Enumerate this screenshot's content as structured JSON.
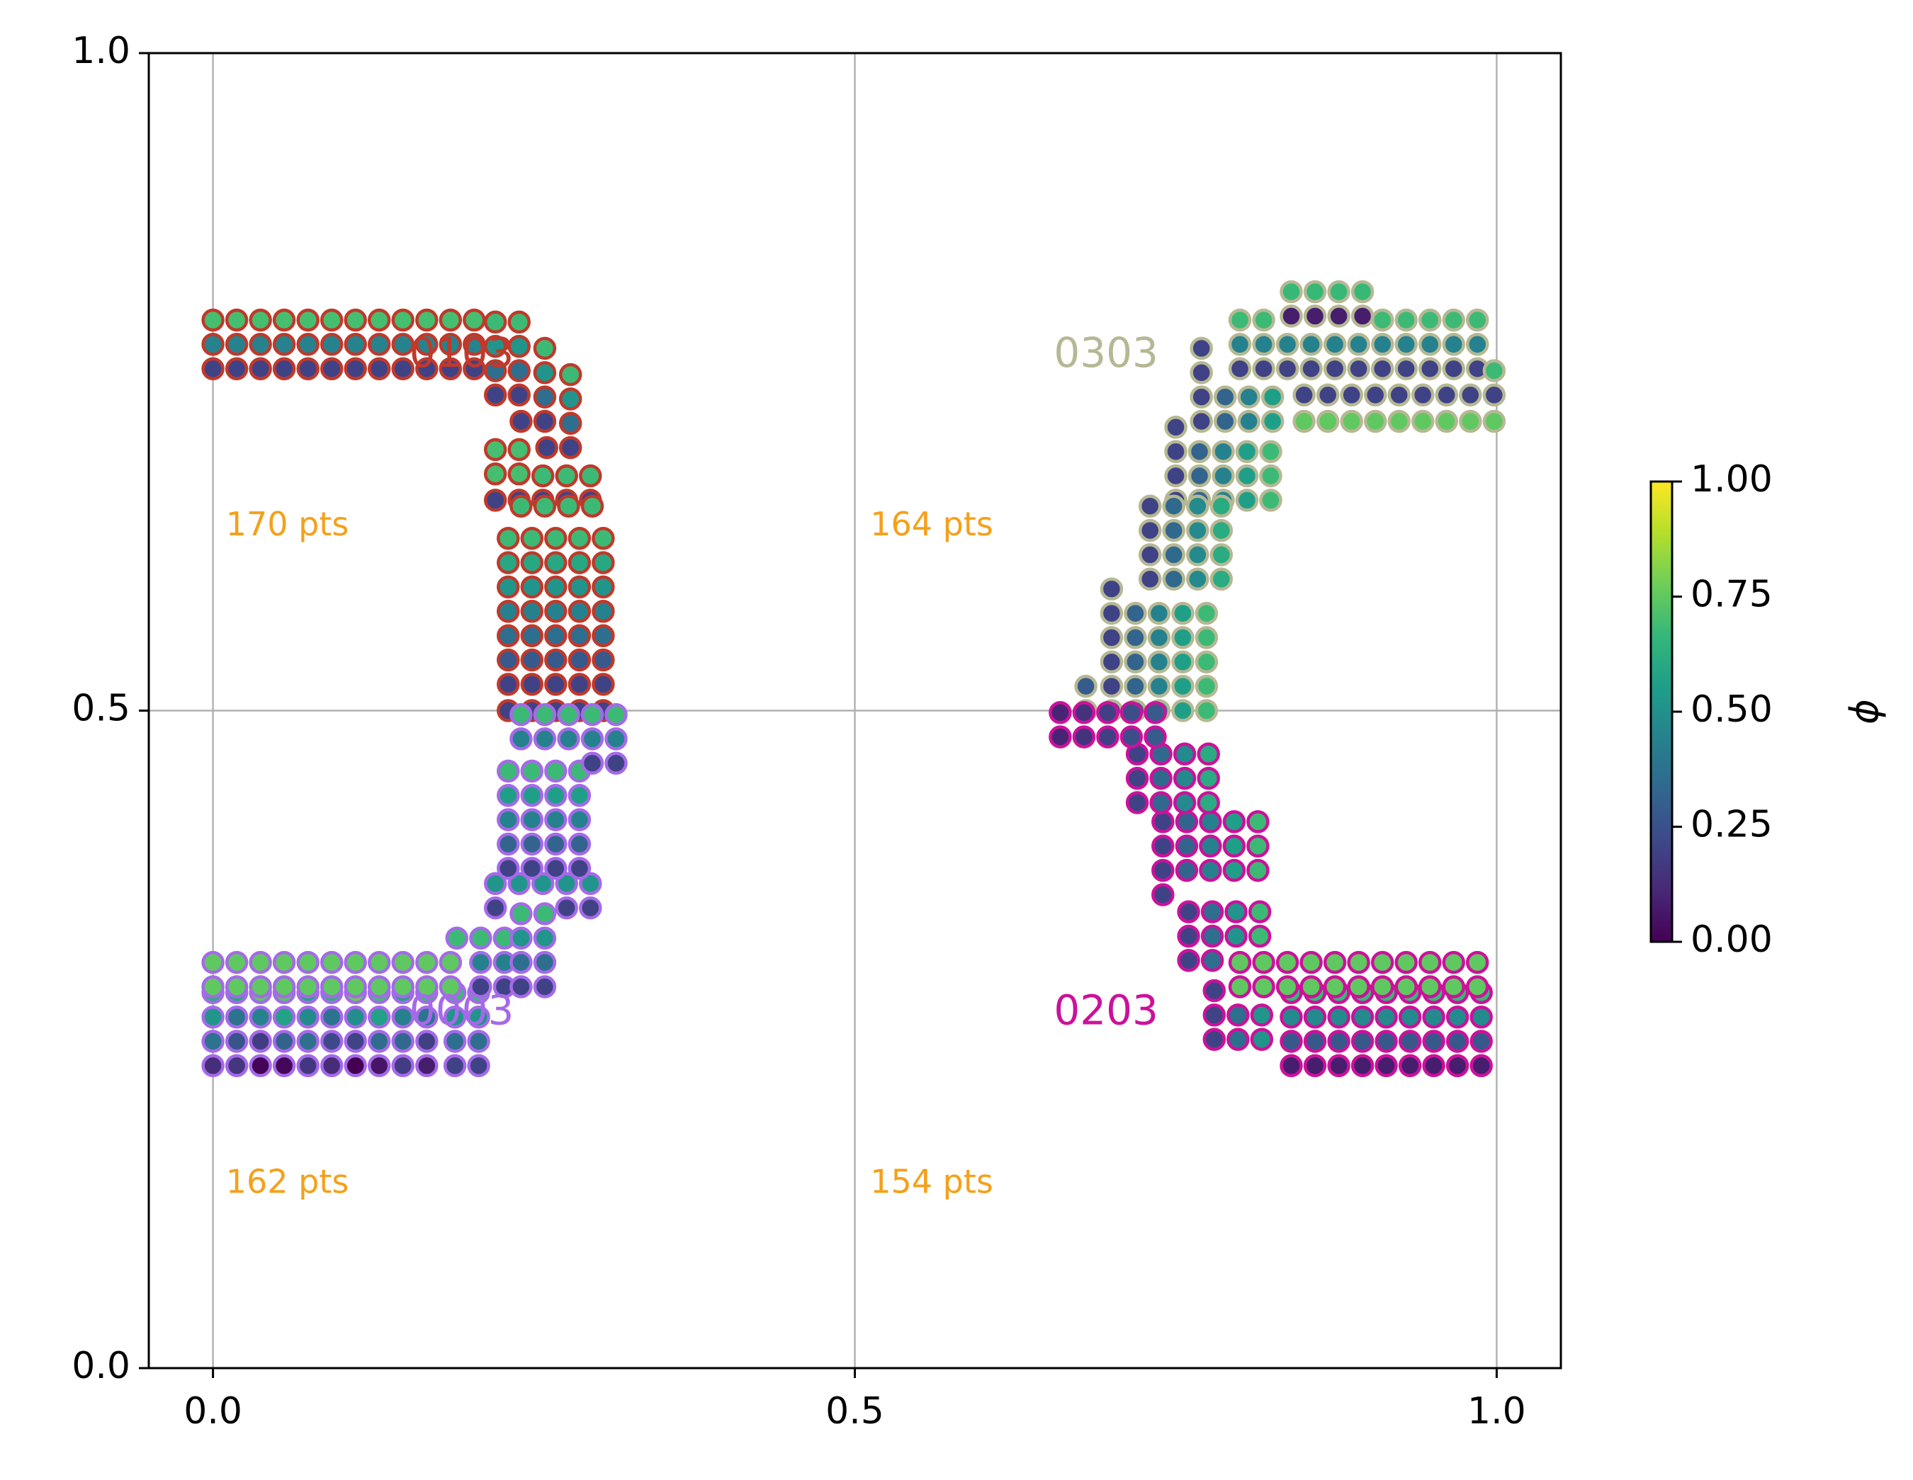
{
  "chart_data": {
    "type": "scatter",
    "xlim": [
      -0.05,
      1.05
    ],
    "ylim": [
      0.0,
      1.0
    ],
    "x_ticks": [
      "0.0",
      "0.5",
      "1.0"
    ],
    "y_ticks": [
      "0.0",
      "0.5",
      "1.0"
    ],
    "grid": true,
    "point_spacing": 0.0185,
    "colormap": "viridis",
    "colorbar": {
      "label": "ϕ",
      "ticks": [
        "0.00",
        "0.25",
        "0.50",
        "0.75",
        "1.00"
      ],
      "range": [
        0.0,
        1.0
      ],
      "stops": [
        "#440154",
        "#482878",
        "#3e4989",
        "#31688e",
        "#26828e",
        "#1f9e89",
        "#35b779",
        "#6ece58",
        "#b5de2b",
        "#fde725"
      ]
    },
    "series": [
      {
        "name": "0103",
        "edge_color": "#c0392b",
        "label_pos": [
          0.153,
          0.77
        ],
        "count_label": "170 pts",
        "count_pos": [
          0.01,
          0.64
        ],
        "bands": [
          [
            0.0,
            0.76,
            0.22,
            0.8,
            0.0,
            0.2,
            0.74,
            0.0,
            0.0
          ],
          [
            0.22,
            0.74,
            0.24,
            0.8,
            0.0,
            0.2,
            0.72,
            0.0,
            0.0
          ],
          [
            0.24,
            0.72,
            0.26,
            0.78,
            0.0,
            0.2,
            0.72,
            0.0,
            0.0
          ],
          [
            0.26,
            0.7,
            0.28,
            0.76,
            0.0,
            0.2,
            0.72,
            0.0,
            0.0
          ],
          [
            0.22,
            0.68,
            0.24,
            0.7,
            0.5,
            0.5,
            0.7,
            0.0,
            0.0
          ],
          [
            0.22,
            0.66,
            0.3,
            0.68,
            0.0,
            0.2,
            0.72,
            0.0,
            0.0
          ],
          [
            0.23,
            0.52,
            0.32,
            0.64,
            0.0,
            0.2,
            0.72,
            0.0,
            0.0
          ],
          [
            0.24,
            0.6,
            0.31,
            0.66,
            0.0,
            0.2,
            0.72,
            0.0,
            0.0
          ],
          [
            0.23,
            0.5,
            0.32,
            0.54,
            0.0,
            0.2,
            0.72,
            0.0,
            0.0
          ]
        ]
      },
      {
        "name": "0003",
        "edge_color": "#a56ae8",
        "label_pos": [
          0.153,
          0.27
        ],
        "count_label": "162 pts",
        "count_pos": [
          0.01,
          0.14
        ],
        "bands": [
          [
            0.0,
            0.23,
            0.17,
            0.29,
            0.0,
            0.08,
            0.72,
            0.1,
            0.0
          ],
          [
            0.17,
            0.23,
            0.22,
            0.29,
            0.0,
            0.2,
            0.72,
            0.0,
            0.0
          ],
          [
            0.0,
            0.29,
            0.19,
            0.31,
            0.5,
            0.5,
            0.75,
            0.0,
            0.0
          ],
          [
            0.19,
            0.29,
            0.24,
            0.33,
            0.0,
            0.2,
            0.72,
            0.0,
            0.0
          ],
          [
            0.24,
            0.29,
            0.27,
            0.35,
            0.0,
            0.2,
            0.72,
            0.0,
            0.0
          ],
          [
            0.22,
            0.35,
            0.3,
            0.38,
            0.0,
            0.2,
            0.72,
            0.0,
            0.0
          ],
          [
            0.23,
            0.38,
            0.3,
            0.46,
            0.0,
            0.2,
            0.72,
            0.0,
            0.0
          ],
          [
            0.24,
            0.46,
            0.32,
            0.5,
            0.0,
            0.2,
            0.72,
            0.0,
            0.0
          ]
        ]
      },
      {
        "name": "0303",
        "edge_color": "#b5b893",
        "label_pos": [
          0.655,
          0.77
        ],
        "count_label": "164 pts",
        "count_pos": [
          0.512,
          0.64
        ],
        "bands": [
          [
            0.84,
            0.8,
            0.91,
            0.82,
            0.0,
            0.08,
            0.72,
            0.0,
            0.0
          ],
          [
            0.8,
            0.76,
            1.0,
            0.8,
            0.0,
            0.2,
            0.72,
            0.0,
            0.0
          ],
          [
            0.85,
            0.74,
            1.0,
            0.76,
            0.0,
            0.2,
            0.72,
            0.0,
            0.0
          ],
          [
            0.85,
            0.72,
            1.0,
            0.74,
            0.5,
            0.5,
            0.75,
            0.0,
            0.0
          ],
          [
            0.77,
            0.72,
            0.85,
            0.78,
            1.0,
            0.2,
            0.72,
            0.0,
            0.0
          ],
          [
            0.75,
            0.66,
            0.83,
            0.72,
            1.0,
            0.2,
            0.72,
            0.0,
            0.0
          ],
          [
            0.73,
            0.6,
            0.8,
            0.66,
            1.0,
            0.2,
            0.72,
            0.0,
            0.0
          ],
          [
            0.7,
            0.5,
            0.78,
            0.6,
            1.0,
            0.2,
            0.72,
            0.0,
            0.0
          ],
          [
            0.68,
            0.5,
            0.7,
            0.52,
            0.0,
            0.1,
            0.3,
            0.0,
            0.0
          ]
        ]
      },
      {
        "name": "0203",
        "edge_color": "#cc119b",
        "label_pos": [
          0.655,
          0.27
        ],
        "count_label": "154 pts",
        "count_pos": [
          0.512,
          0.14
        ],
        "bands": [
          [
            0.84,
            0.23,
            1.0,
            0.29,
            0.0,
            0.08,
            0.72,
            0.0,
            0.0
          ],
          [
            0.8,
            0.29,
            1.0,
            0.31,
            0.5,
            0.5,
            0.75,
            0.0,
            0.0
          ],
          [
            0.78,
            0.25,
            0.84,
            0.29,
            1.0,
            0.2,
            0.72,
            0.0,
            0.0
          ],
          [
            0.76,
            0.31,
            0.82,
            0.36,
            1.0,
            0.2,
            0.72,
            0.0,
            0.0
          ],
          [
            0.74,
            0.36,
            0.82,
            0.43,
            1.0,
            0.2,
            0.72,
            0.0,
            0.0
          ],
          [
            0.72,
            0.43,
            0.79,
            0.48,
            1.0,
            0.2,
            0.72,
            0.0,
            0.0
          ],
          [
            0.66,
            0.48,
            0.74,
            0.5,
            1.0,
            0.1,
            0.3,
            0.0,
            0.0
          ]
        ]
      }
    ]
  }
}
